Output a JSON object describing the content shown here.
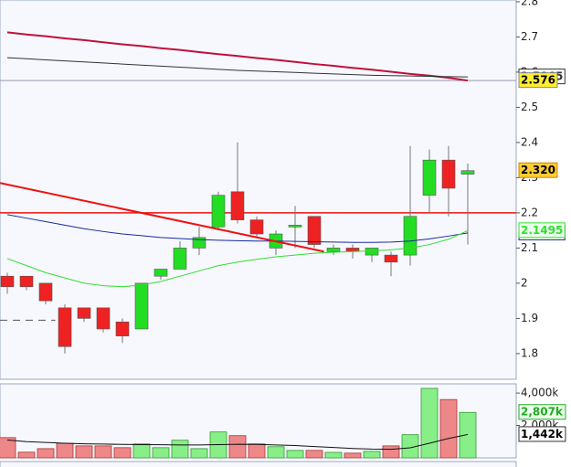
{
  "chart_data": [
    {
      "type": "candlestick",
      "categories": [
        null,
        null,
        null,
        null,
        null,
        null,
        null,
        null,
        null,
        null,
        null,
        null,
        null,
        null,
        null,
        null,
        null,
        null,
        null,
        null,
        null,
        null,
        null,
        null,
        null
      ],
      "open": [
        2.02,
        2.02,
        2.0,
        1.93,
        1.93,
        1.93,
        1.89,
        1.87,
        2.02,
        2.04,
        2.1,
        2.16,
        2.26,
        2.18,
        2.1,
        2.16,
        2.19,
        2.09,
        2.1,
        2.08,
        2.08,
        2.08,
        2.25,
        2.35,
        2.31
      ],
      "high": [
        2.03,
        2.02,
        2.0,
        1.94,
        1.93,
        1.93,
        1.9,
        2.0,
        2.04,
        2.12,
        2.16,
        2.26,
        2.4,
        2.19,
        2.15,
        2.22,
        2.19,
        2.11,
        2.11,
        2.1,
        2.09,
        2.39,
        2.38,
        2.39,
        2.34
      ],
      "low": [
        1.97,
        1.98,
        1.94,
        1.8,
        1.89,
        1.86,
        1.83,
        1.87,
        2.01,
        2.04,
        2.08,
        2.15,
        2.17,
        2.13,
        2.08,
        2.1,
        2.1,
        2.08,
        2.07,
        2.06,
        2.02,
        2.05,
        2.2,
        2.19,
        2.11
      ],
      "close": [
        1.99,
        1.99,
        1.95,
        1.82,
        1.9,
        1.87,
        1.85,
        2.0,
        2.04,
        2.1,
        2.13,
        2.25,
        2.18,
        2.14,
        2.14,
        2.165,
        2.11,
        2.1,
        2.09,
        2.1,
        2.06,
        2.19,
        2.35,
        2.27,
        2.32
      ],
      "up_color": "#22dd22",
      "down_color": "#ee2222",
      "ylim": [
        1.727,
        2.805
      ],
      "yticks": [
        1.8,
        1.9,
        2,
        2.1,
        2.2,
        2.3,
        2.4,
        2.5,
        2.6,
        2.7,
        2.8
      ],
      "overlays": [
        {
          "color": "#c0103a",
          "values": [
            2.713,
            2.707,
            2.702,
            2.696,
            2.691,
            2.685,
            2.679,
            2.674,
            2.668,
            2.663,
            2.657,
            2.651,
            2.646,
            2.64,
            2.635,
            2.629,
            2.623,
            2.618,
            2.612,
            2.607,
            2.601,
            2.595,
            2.59,
            2.584,
            2.5759
          ]
        },
        {
          "color": "#333333",
          "label_fill": "#ffffff",
          "values": [
            2.641,
            2.638,
            2.635,
            2.632,
            2.629,
            2.626,
            2.623,
            2.62,
            2.617,
            2.614,
            2.611,
            2.608,
            2.605,
            2.603,
            2.601,
            2.599,
            2.597,
            2.595,
            2.593,
            2.591,
            2.59,
            2.589,
            2.588,
            2.587,
            2.5865
          ]
        },
        {
          "color": "#1a2a9a",
          "label_fill": "#ffffff",
          "values": [
            2.195,
            2.185,
            2.175,
            2.165,
            2.155,
            2.147,
            2.14,
            2.135,
            2.13,
            2.127,
            2.124,
            2.122,
            2.121,
            2.12,
            2.12,
            2.119,
            2.118,
            2.117,
            2.116,
            2.116,
            2.117,
            2.12,
            2.126,
            2.134,
            2.1428
          ]
        },
        {
          "color": "#33dd33",
          "label_fill": "#eaffea",
          "values": [
            2.07,
            2.05,
            2.03,
            2.015,
            2.0,
            1.993,
            1.99,
            1.995,
            2.005,
            2.02,
            2.035,
            2.05,
            2.06,
            2.068,
            2.075,
            2.08,
            2.085,
            2.088,
            2.09,
            2.092,
            2.095,
            2.1,
            2.11,
            2.125,
            2.1495
          ]
        }
      ],
      "last_close": {
        "value": 2.32,
        "label": "2.320"
      },
      "reference_level": 2.576,
      "hline": 2.2,
      "trendline": {
        "color": "#ee1111",
        "x": [
          -0.38,
          16.5
        ],
        "y": [
          2.285,
          2.09
        ]
      },
      "dashed_level": {
        "value": 1.895,
        "x": [
          -0.38,
          2.5
        ]
      }
    },
    {
      "type": "bar",
      "values": [
        1250,
        350,
        570,
        900,
        740,
        740,
        630,
        860,
        630,
        1090,
        570,
        1600,
        1370,
        860,
        690,
        460,
        460,
        340,
        290,
        400,
        740,
        1430,
        4290,
        3600,
        2807
      ],
      "ylim": [
        0,
        4570
      ],
      "yticks": [
        {
          "value": 4000,
          "label": "4,000k"
        },
        {
          "value": 2000,
          "label": "2,000k"
        }
      ],
      "last_label": "2,807k",
      "ma": {
        "color": "#111111",
        "values": [
          1100,
          1000,
          950,
          900,
          870,
          850,
          830,
          820,
          810,
          800,
          800,
          820,
          840,
          830,
          800,
          760,
          700,
          640,
          580,
          540,
          530,
          620,
          900,
          1200,
          1442
        ],
        "label": "1,442k"
      }
    }
  ]
}
